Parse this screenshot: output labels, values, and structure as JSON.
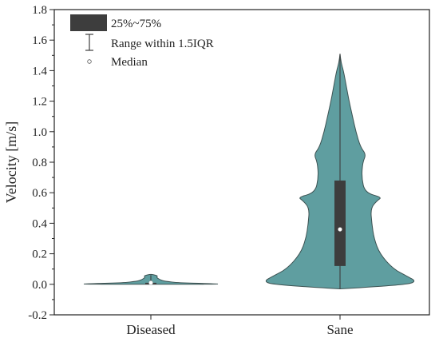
{
  "chart_data": {
    "type": "violin",
    "title": "",
    "xlabel": "",
    "ylabel": "Velocity [m/s]",
    "ylim": [
      -0.2,
      1.8
    ],
    "yticks": [
      -0.2,
      0.0,
      0.2,
      0.4,
      0.6,
      0.8,
      1.0,
      1.2,
      1.4,
      1.6,
      1.8
    ],
    "ytick_labels": [
      "-0.2",
      "0.0",
      "0.2",
      "0.4",
      "0.6",
      "0.8",
      "1.0",
      "1.2",
      "1.4",
      "1.6",
      "1.8"
    ],
    "categories": [
      "Diseased",
      "Sane"
    ],
    "violin_color": "#5f9ea0",
    "box_color": "#3d3d3d",
    "median_color": "#ffffff",
    "legend": {
      "placement": "top-left",
      "entries": [
        "25%~75%",
        "Range within 1.5IQR",
        "Median"
      ]
    },
    "groups": [
      {
        "category": "Diseased",
        "box": {
          "q1": 0.0,
          "q3": 0.01,
          "whisker_low": 0.0,
          "whisker_high": 0.06,
          "median": 0.01
        },
        "density_profile": [
          [
            0.0,
            0.66
          ],
          [
            0.005,
            0.5
          ],
          [
            0.01,
            0.25
          ],
          [
            0.02,
            0.12
          ],
          [
            0.03,
            0.08
          ],
          [
            0.045,
            0.05
          ],
          [
            0.055,
            0.06
          ],
          [
            0.06,
            0.04
          ],
          [
            0.065,
            0.01
          ]
        ]
      },
      {
        "category": "Sane",
        "box": {
          "q1": 0.12,
          "q3": 0.68,
          "whisker_low": -0.03,
          "whisker_high": 1.51,
          "median": 0.36
        },
        "density_profile": [
          [
            -0.03,
            0.0
          ],
          [
            -0.02,
            0.22
          ],
          [
            0.0,
            0.6
          ],
          [
            0.02,
            0.67
          ],
          [
            0.05,
            0.6
          ],
          [
            0.1,
            0.47
          ],
          [
            0.2,
            0.35
          ],
          [
            0.3,
            0.3
          ],
          [
            0.4,
            0.28
          ],
          [
            0.5,
            0.27
          ],
          [
            0.55,
            0.33
          ],
          [
            0.57,
            0.37
          ],
          [
            0.6,
            0.22
          ],
          [
            0.7,
            0.19
          ],
          [
            0.8,
            0.2
          ],
          [
            0.85,
            0.23
          ],
          [
            0.9,
            0.18
          ],
          [
            1.0,
            0.14
          ],
          [
            1.1,
            0.11
          ],
          [
            1.2,
            0.08
          ],
          [
            1.3,
            0.055
          ],
          [
            1.4,
            0.03
          ],
          [
            1.45,
            0.01
          ],
          [
            1.51,
            0.0
          ]
        ]
      }
    ]
  }
}
